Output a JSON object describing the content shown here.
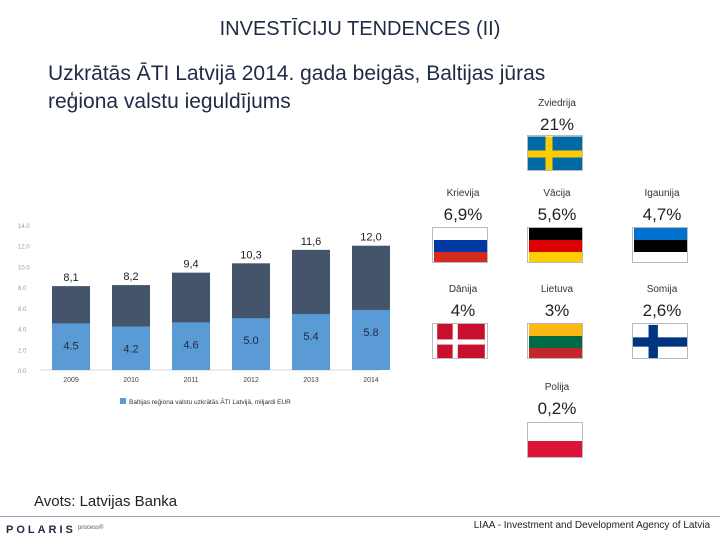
{
  "title": "INVESTĪCIJU TENDENCES (II)",
  "subtitle": "Uzkrātās ĀTI Latvijā 2014. gada beigās, Baltijas jūras\nreģiona valstu ieguldījums",
  "chart_data": {
    "type": "bar",
    "categories": [
      "2009",
      "2010",
      "2011",
      "2012",
      "2013",
      "2014"
    ],
    "series": [
      {
        "name": "Baltijas reģiona valstu uzkrātās ĀTI Latvijā, miljardi EUR",
        "values": [
          4.5,
          4.2,
          4.6,
          5.0,
          5.4,
          5.8
        ],
        "labels": [
          "4.5",
          "4.2",
          "4.6",
          "5.0",
          "5.4",
          "5.8"
        ],
        "color": "#5b9bd5"
      },
      {
        "name": "",
        "values": [
          8.1,
          8.2,
          9.4,
          10.3,
          11.6,
          12.0
        ],
        "labels": [
          "8,1",
          "8,2",
          "9,4",
          "10,3",
          "11,6",
          "12,0"
        ],
        "color": "#44546a"
      }
    ],
    "y_ticks": [
      "0.0",
      "2.0",
      "4.0",
      "6.0",
      "8.0",
      "10.0",
      "12.0",
      "14.0"
    ],
    "ylim": [
      0,
      14
    ],
    "legend": "bottom",
    "legend_label": "Baltijas reģiona valstu uzkrātās ĀTI Latvijā, miljardi EUR"
  },
  "countries": [
    {
      "name": "Zviedrija",
      "value": "21%",
      "flag": "sweden"
    },
    {
      "name": "Krievija",
      "value": "6,9%",
      "flag": "russia"
    },
    {
      "name": "Vācija",
      "value": "5,6%",
      "flag": "germany"
    },
    {
      "name": "Igaunija",
      "value": "4,7%",
      "flag": "estonia"
    },
    {
      "name": "Dānija",
      "value": "4%",
      "flag": "denmark"
    },
    {
      "name": "Lietuva",
      "value": "3%",
      "flag": "lithuania"
    },
    {
      "name": "Somija",
      "value": "2,6%",
      "flag": "finland"
    },
    {
      "name": "Polija",
      "value": "0,2%",
      "flag": "poland"
    }
  ],
  "source": "Avots: Latvijas Banka",
  "logo": "POLARIS",
  "logo_sub": "process®",
  "footer": "LIAA - Investment and Development Agency of Latvia"
}
